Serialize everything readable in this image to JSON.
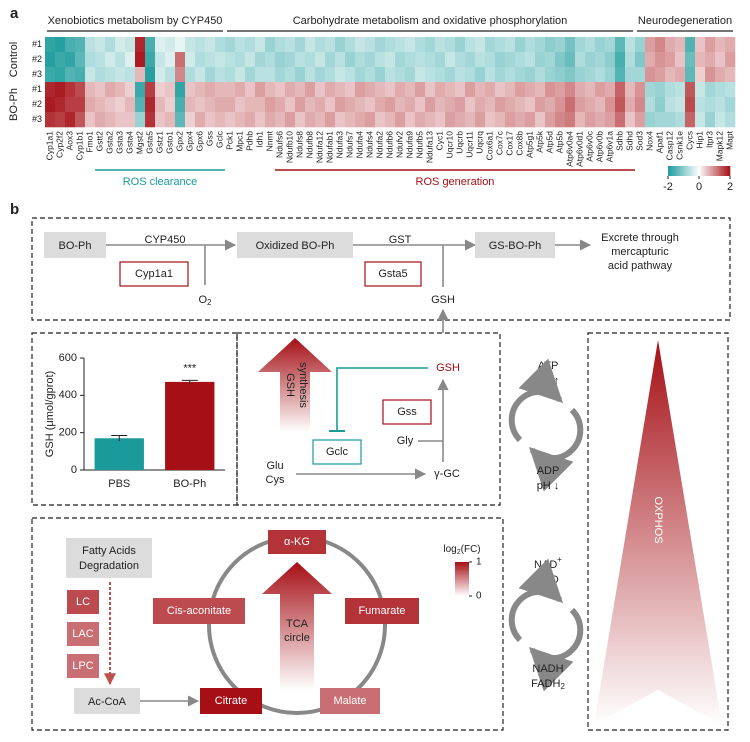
{
  "panel_labels": [
    "a",
    "b"
  ],
  "chart_data": [
    {
      "type": "heatmap",
      "row_groups": [
        {
          "name": "Control",
          "rows": [
            "#1",
            "#2",
            "#3"
          ]
        },
        {
          "name": "BO-Ph",
          "rows": [
            "#1",
            "#2",
            "#3"
          ]
        }
      ],
      "categories": [
        "Cyp1a1",
        "Cyp2f2",
        "Aox3",
        "Cyp1b1",
        "Fmo1",
        "Gstt2",
        "Gsta2",
        "Gsta3",
        "Gsta4",
        "Mgst2",
        "Gsta5",
        "Gstz1",
        "Gsto1",
        "Gpx2",
        "Gpx4",
        "Gpx6",
        "Gss",
        "Gclc",
        "Pck1",
        "Mpc1",
        "Pdhb",
        "Idh1",
        "Nnmt",
        "Ndufs6",
        "Ndufb10",
        "Ndufs8",
        "Ndufb8",
        "Ndufa12",
        "Ndufab1",
        "Ndufa3",
        "Ndufs7",
        "Ndufa4",
        "Ndufs4",
        "Ndufa2",
        "Ndufb6",
        "Ndufv2",
        "Ndufa9",
        "Ndufb5",
        "Ndufa13",
        "Cyc1",
        "Uqcr10",
        "Uqcrb",
        "Uqcr11",
        "Uqcrq",
        "Cox6a1",
        "Cox7c",
        "Cox17",
        "Cox8b",
        "Atp5g1",
        "Atp5k",
        "Atp5d",
        "Atp5b",
        "Atp6v0a4",
        "Atp6v0d1",
        "Atp6v0c",
        "Atp6v0b",
        "Atp6v1a",
        "Sdhb",
        "Sdhd",
        "Sod3",
        "Nox4",
        "Apaf1",
        "Casp12",
        "Csnk1e",
        "Cycs",
        "Hip1",
        "Itpr3",
        "Mapk12",
        "Mapt"
      ],
      "category_groups": [
        {
          "label": "Xenobiotics metabolism by CYP450",
          "count": 18
        },
        {
          "label": "Carbohydrate metabolism and oxidative phosphorylation",
          "count": 41
        },
        {
          "label": "Neurodegeneration",
          "count": 10
        }
      ],
      "annotations": [
        {
          "label": "ROS clearance",
          "start": 5,
          "end": 17,
          "color": "#1a9a9a"
        },
        {
          "label": "ROS generation",
          "start": 23,
          "end": 58,
          "color": "#a50f15"
        }
      ],
      "values": [
        [
          -1.8,
          -1.9,
          -1.6,
          -1.5,
          -0.6,
          -0.5,
          -0.7,
          -0.4,
          -0.5,
          1.8,
          -1.6,
          -0.3,
          -0.4,
          -0.2,
          -0.5,
          -0.6,
          -0.5,
          -0.7,
          -0.8,
          -0.6,
          -0.7,
          -0.5,
          -0.9,
          -0.7,
          -0.6,
          -0.8,
          -0.5,
          -0.7,
          -0.6,
          -0.9,
          -0.7,
          -0.5,
          -0.6,
          -0.8,
          -0.7,
          -0.6,
          -0.5,
          -0.7,
          -0.8,
          -0.6,
          -0.7,
          -0.9,
          -0.6,
          -0.5,
          -0.8,
          -0.7,
          -0.6,
          -0.9,
          -0.7,
          -0.8,
          -1.0,
          -0.9,
          -1.2,
          -0.8,
          -0.7,
          -0.9,
          -0.8,
          -1.4,
          -0.6,
          -0.9,
          0.8,
          1.0,
          0.7,
          0.6,
          -1.5,
          0.5,
          0.8,
          0.6,
          0.7
        ],
        [
          -1.9,
          -1.7,
          -1.8,
          -1.4,
          -0.7,
          -0.6,
          -0.4,
          -0.6,
          -0.3,
          1.9,
          -1.7,
          -0.5,
          -0.3,
          1.2,
          -0.4,
          -0.7,
          -0.6,
          -0.5,
          -0.6,
          -0.7,
          -0.5,
          -0.8,
          -0.7,
          -0.9,
          -0.8,
          -0.6,
          -0.7,
          -0.5,
          -0.8,
          -0.6,
          -0.9,
          -0.7,
          -0.8,
          -0.6,
          -0.5,
          -0.8,
          -0.7,
          -0.6,
          -0.7,
          -0.8,
          -0.5,
          -0.7,
          -0.8,
          -0.6,
          -0.7,
          -0.9,
          -0.8,
          -0.7,
          -0.6,
          -0.9,
          -0.8,
          -1.1,
          -1.3,
          -0.7,
          -0.9,
          -0.8,
          -1.0,
          -1.6,
          -0.7,
          -1.1,
          0.7,
          0.9,
          0.8,
          0.5,
          -1.3,
          0.6,
          0.7,
          0.5,
          0.8
        ],
        [
          -1.7,
          -1.8,
          -1.5,
          -1.6,
          -0.5,
          -0.7,
          -0.6,
          -0.5,
          -0.6,
          0.6,
          -1.9,
          -0.4,
          -0.6,
          1.0,
          -0.7,
          -0.5,
          -0.8,
          -0.6,
          -0.7,
          -0.5,
          -0.8,
          -0.6,
          -0.6,
          -0.8,
          -0.7,
          -0.9,
          -0.6,
          -0.8,
          -0.7,
          -0.5,
          -0.6,
          -0.8,
          -0.7,
          -0.9,
          -0.6,
          -0.7,
          -0.8,
          -0.5,
          -0.6,
          -0.7,
          -0.8,
          -0.6,
          -0.7,
          -0.9,
          -0.6,
          -0.8,
          -0.7,
          -0.8,
          -0.9,
          -0.7,
          -0.9,
          -1.0,
          -1.1,
          -0.9,
          -0.8,
          -0.7,
          -0.9,
          -1.5,
          -0.8,
          -0.8,
          0.9,
          0.8,
          0.6,
          0.7,
          -1.4,
          0.4,
          0.9,
          0.7,
          0.6
        ],
        [
          1.8,
          1.9,
          1.7,
          1.5,
          0.6,
          0.5,
          0.7,
          0.6,
          0.4,
          -1.7,
          1.6,
          0.4,
          0.5,
          -1.8,
          0.5,
          0.6,
          0.7,
          0.6,
          0.6,
          0.7,
          0.5,
          0.8,
          0.6,
          0.5,
          0.7,
          0.6,
          0.8,
          0.5,
          0.7,
          0.6,
          0.5,
          0.8,
          0.7,
          0.6,
          0.5,
          0.7,
          0.6,
          0.8,
          0.5,
          0.7,
          0.6,
          0.5,
          0.8,
          0.6,
          0.7,
          0.5,
          0.6,
          0.8,
          0.7,
          0.6,
          0.9,
          0.8,
          1.0,
          0.7,
          0.6,
          0.8,
          0.7,
          1.3,
          0.6,
          0.9,
          -0.8,
          -0.9,
          -0.7,
          -0.6,
          1.4,
          -0.5,
          -0.8,
          -0.7,
          -0.6
        ],
        [
          1.9,
          1.8,
          1.6,
          1.6,
          0.7,
          0.6,
          0.5,
          0.4,
          0.6,
          -1.5,
          1.8,
          0.6,
          0.4,
          -1.6,
          0.6,
          0.5,
          0.6,
          0.7,
          0.7,
          0.5,
          0.6,
          0.6,
          0.8,
          0.7,
          0.5,
          0.8,
          0.6,
          0.7,
          0.5,
          0.8,
          0.7,
          0.6,
          0.5,
          0.7,
          0.8,
          0.6,
          0.7,
          0.5,
          0.8,
          0.6,
          0.7,
          0.8,
          0.5,
          0.7,
          0.6,
          0.8,
          0.7,
          0.6,
          0.5,
          0.8,
          0.7,
          0.9,
          1.2,
          0.8,
          0.7,
          0.6,
          0.9,
          1.4,
          0.7,
          1.0,
          -0.7,
          -1.0,
          -0.6,
          -0.5,
          1.5,
          -0.6,
          -0.7,
          -0.6,
          -0.8
        ],
        [
          1.7,
          1.6,
          1.8,
          1.4,
          0.5,
          0.7,
          0.6,
          0.5,
          0.5,
          -0.9,
          1.7,
          0.5,
          0.6,
          -1.4,
          0.4,
          0.7,
          0.5,
          0.6,
          0.5,
          0.6,
          0.7,
          0.5,
          0.7,
          0.6,
          0.8,
          0.5,
          0.7,
          0.6,
          0.8,
          0.5,
          0.6,
          0.7,
          0.8,
          0.5,
          0.6,
          0.8,
          0.5,
          0.7,
          0.6,
          0.5,
          0.8,
          0.7,
          0.6,
          0.8,
          0.5,
          0.6,
          0.8,
          0.7,
          0.8,
          0.5,
          0.8,
          1.0,
          1.1,
          0.6,
          0.8,
          0.7,
          0.8,
          1.2,
          0.5,
          0.8,
          -0.9,
          -0.8,
          -0.8,
          -0.7,
          1.3,
          -0.5,
          -0.9,
          -0.5,
          -0.7
        ]
      ],
      "colors": [
        "#1a9a9a",
        "#ffffff",
        "#a50f15"
      ],
      "clim": [
        -2,
        2
      ],
      "colorbar_ticks": [
        -2,
        0,
        2
      ]
    },
    {
      "type": "bar",
      "categories": [
        "PBS",
        "BO-Ph"
      ],
      "values": [
        170,
        472
      ],
      "errors": [
        15,
        8
      ],
      "colors": [
        "#1a9a9a",
        "#a50f15"
      ],
      "ylim": [
        0,
        600
      ],
      "yticks": [
        0,
        200,
        400,
        600
      ],
      "y_label": "GSH (μmol/gprot)",
      "annotation": "***"
    }
  ],
  "pathway": {
    "bo_ph": "BO-Ph",
    "cyp450": "CYP450",
    "cyp1a1": "Cyp1a1",
    "o2": [
      "O",
      "2"
    ],
    "oxidized": "Oxidized BO-Ph",
    "gst": "GST",
    "gsta5": "Gsta5",
    "gsh_top": "GSH",
    "gs_bo_ph": "GS-BO-Ph",
    "excrete": [
      "Excrete through",
      "mercapturic",
      "acid pathway"
    ],
    "gsh_synthesis": [
      "GSH",
      "synthesis"
    ],
    "gsh": "GSH",
    "gss": "Gss",
    "gclc": "Gclc",
    "gly": "Gly",
    "glu": "Glu",
    "cys": "Cys",
    "ggc": "γ-GC",
    "atp": "ATP",
    "ph_up": "pH ↑",
    "adp": "ADP",
    "ph_down": "pH ↓",
    "nad": [
      "NAD",
      "+"
    ],
    "fad": "FAD",
    "nadh": "NADH",
    "fadh2": [
      "FADH",
      "2"
    ],
    "oxphos": "OXPHOS",
    "fatty": [
      "Fatty Acids",
      "Degradation"
    ],
    "accoa": "Ac-CoA",
    "tca": [
      "TCA",
      "circle"
    ]
  },
  "tca": {
    "colorbar_title": [
      "log",
      "2",
      "(FC)"
    ],
    "clim": [
      0,
      1
    ],
    "ticks": [
      0,
      1
    ],
    "colors": [
      "#ffffff",
      "#a50f15"
    ],
    "items": [
      {
        "label": "α-KG",
        "value": 0.85
      },
      {
        "label": "Fumarate",
        "value": 0.85
      },
      {
        "label": "Cis-aconitate",
        "value": 0.75
      },
      {
        "label": "Citrate",
        "value": 1.0
      },
      {
        "label": "Malate",
        "value": 0.6
      },
      {
        "label": "LC",
        "value": 0.75
      },
      {
        "label": "LAC",
        "value": 0.6
      },
      {
        "label": "LPC",
        "value": 0.6
      }
    ]
  }
}
